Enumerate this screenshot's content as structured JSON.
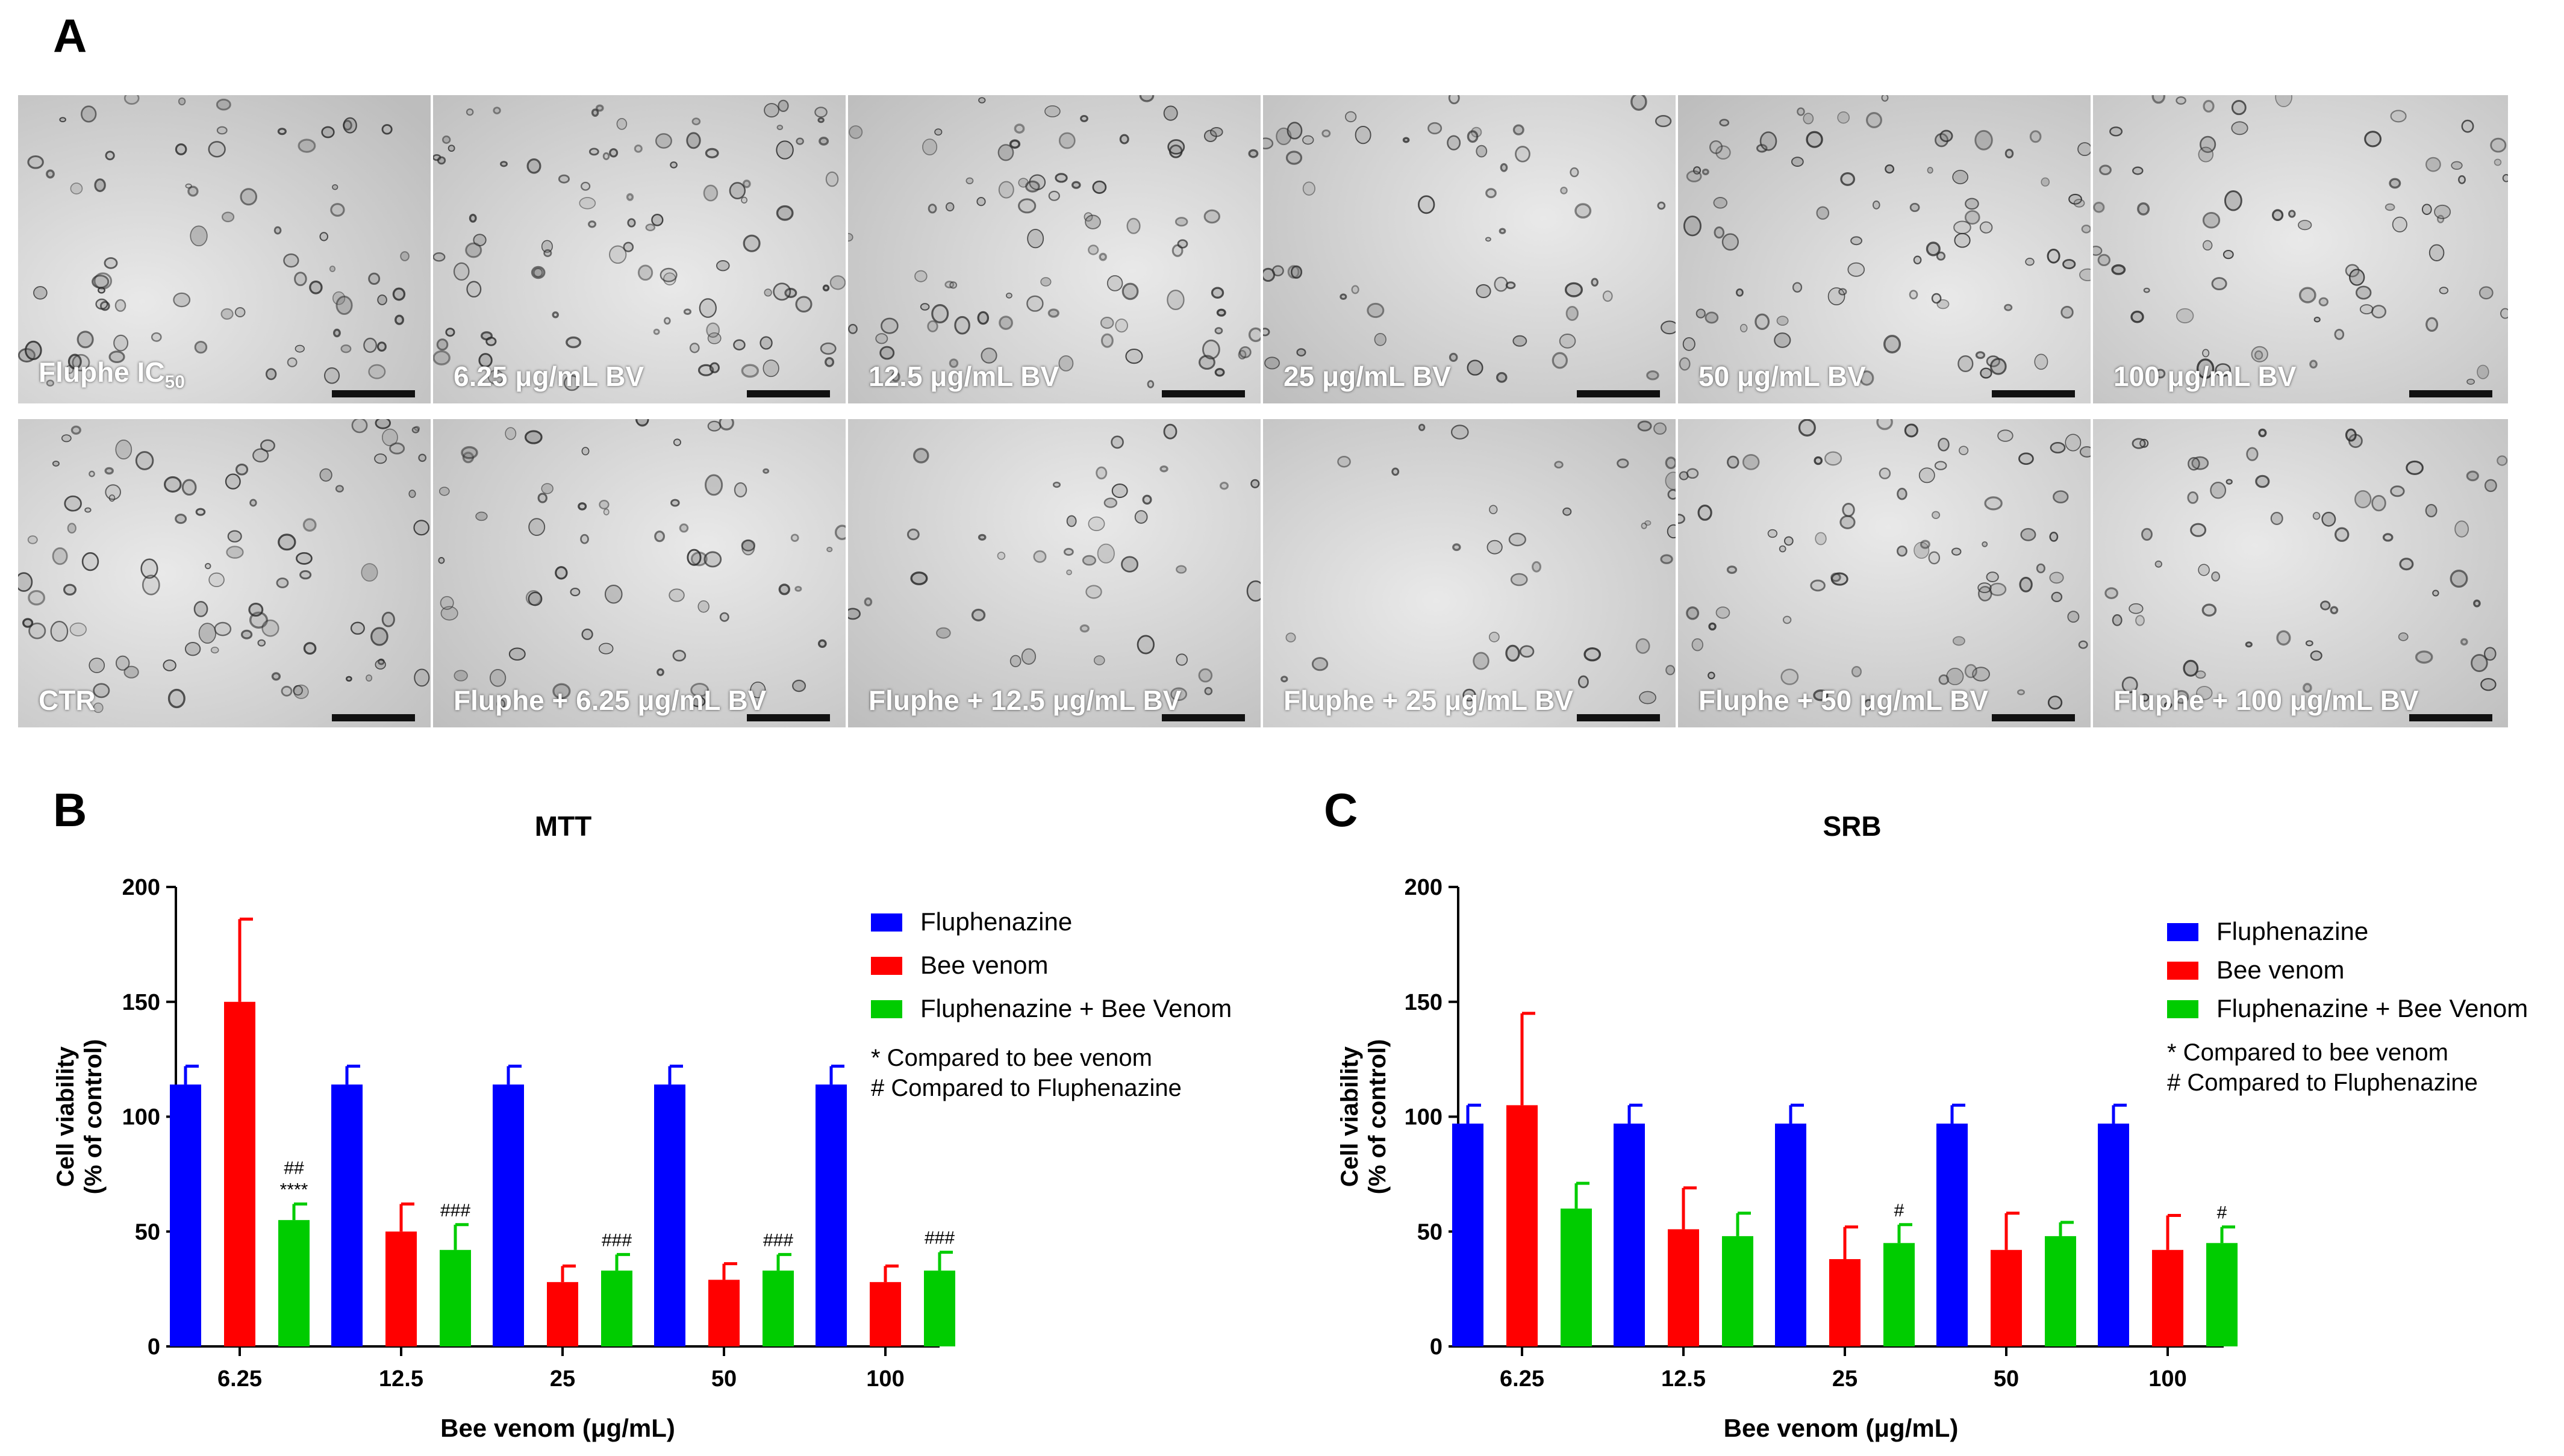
{
  "panels": {
    "a": "A",
    "b": "B",
    "c": "C"
  },
  "micrographs": [
    {
      "label": "Fluphe IC",
      "sub": "50"
    },
    {
      "label": "6.25 μg/mL BV"
    },
    {
      "label": "12.5 μg/mL BV"
    },
    {
      "label": "25 μg/mL BV"
    },
    {
      "label": "50 μg/mL BV"
    },
    {
      "label": "100 μg/mL BV"
    },
    {
      "label": "CTR"
    },
    {
      "label": "Fluphe + 6.25 μg/mL BV"
    },
    {
      "label": "Fluphe + 12.5 μg/mL BV"
    },
    {
      "label": "Fluphe + 25 μg/mL BV"
    },
    {
      "label": "Fluphe + 50 μg/mL BV"
    },
    {
      "label": "Fluphe + 100 μg/mL BV"
    }
  ],
  "colors": {
    "fluphenazine": "#0000ff",
    "bee_venom": "#ff0000",
    "combo": "#00cc00"
  },
  "chart_data": [
    {
      "type": "bar",
      "title": "MTT",
      "xlabel": "Bee venom (μg/mL)",
      "ylabel": [
        "Cell viability",
        "(% of control)"
      ],
      "ylim": [
        0,
        200
      ],
      "yticks": [
        0,
        50,
        100,
        150,
        200
      ],
      "categories": [
        "6.25",
        "12.5",
        "25",
        "50",
        "100"
      ],
      "series": [
        {
          "name": "Fluphenazine",
          "values": [
            114,
            114,
            114,
            114,
            114
          ],
          "errors": [
            8,
            8,
            8,
            8,
            8
          ]
        },
        {
          "name": "Bee venom",
          "values": [
            150,
            50,
            28,
            29,
            28
          ],
          "errors": [
            36,
            12,
            7,
            7,
            7
          ]
        },
        {
          "name": "Fluphenazine + Bee Venom",
          "values": [
            55,
            42,
            33,
            33,
            33
          ],
          "errors": [
            7,
            11,
            7,
            7,
            8
          ]
        }
      ],
      "annotations": [
        {
          "category": 0,
          "series": 2,
          "lines": [
            "##",
            "****"
          ]
        },
        {
          "category": 1,
          "series": 2,
          "lines": [
            "###"
          ]
        },
        {
          "category": 2,
          "series": 2,
          "lines": [
            "###"
          ]
        },
        {
          "category": 3,
          "series": 2,
          "lines": [
            "###"
          ]
        },
        {
          "category": 4,
          "series": 2,
          "lines": [
            "###"
          ]
        }
      ],
      "notes": [
        "* Compared to bee venom",
        "# Compared to Fluphenazine"
      ],
      "legend_position": "top-right"
    },
    {
      "type": "bar",
      "title": "SRB",
      "xlabel": "Bee venom (μg/mL)",
      "ylabel": [
        "Cell viability",
        "(% of control)"
      ],
      "ylim": [
        0,
        200
      ],
      "yticks": [
        0,
        50,
        100,
        150,
        200
      ],
      "categories": [
        "6.25",
        "12.5",
        "25",
        "50",
        "100"
      ],
      "series": [
        {
          "name": "Fluphenazine",
          "values": [
            97,
            97,
            97,
            97,
            97
          ],
          "errors": [
            8,
            8,
            8,
            8,
            8
          ]
        },
        {
          "name": "Bee venom",
          "values": [
            105,
            51,
            38,
            42,
            42
          ],
          "errors": [
            40,
            18,
            14,
            16,
            15
          ]
        },
        {
          "name": "Fluphenazine + Bee Venom",
          "values": [
            60,
            48,
            45,
            48,
            45
          ],
          "errors": [
            11,
            10,
            8,
            6,
            7
          ]
        }
      ],
      "annotations": [
        {
          "category": 2,
          "series": 2,
          "lines": [
            "#"
          ]
        },
        {
          "category": 4,
          "series": 2,
          "lines": [
            "#"
          ]
        }
      ],
      "notes": [
        "* Compared to bee venom",
        "# Compared to Fluphenazine"
      ],
      "legend_position": "top-right"
    }
  ]
}
